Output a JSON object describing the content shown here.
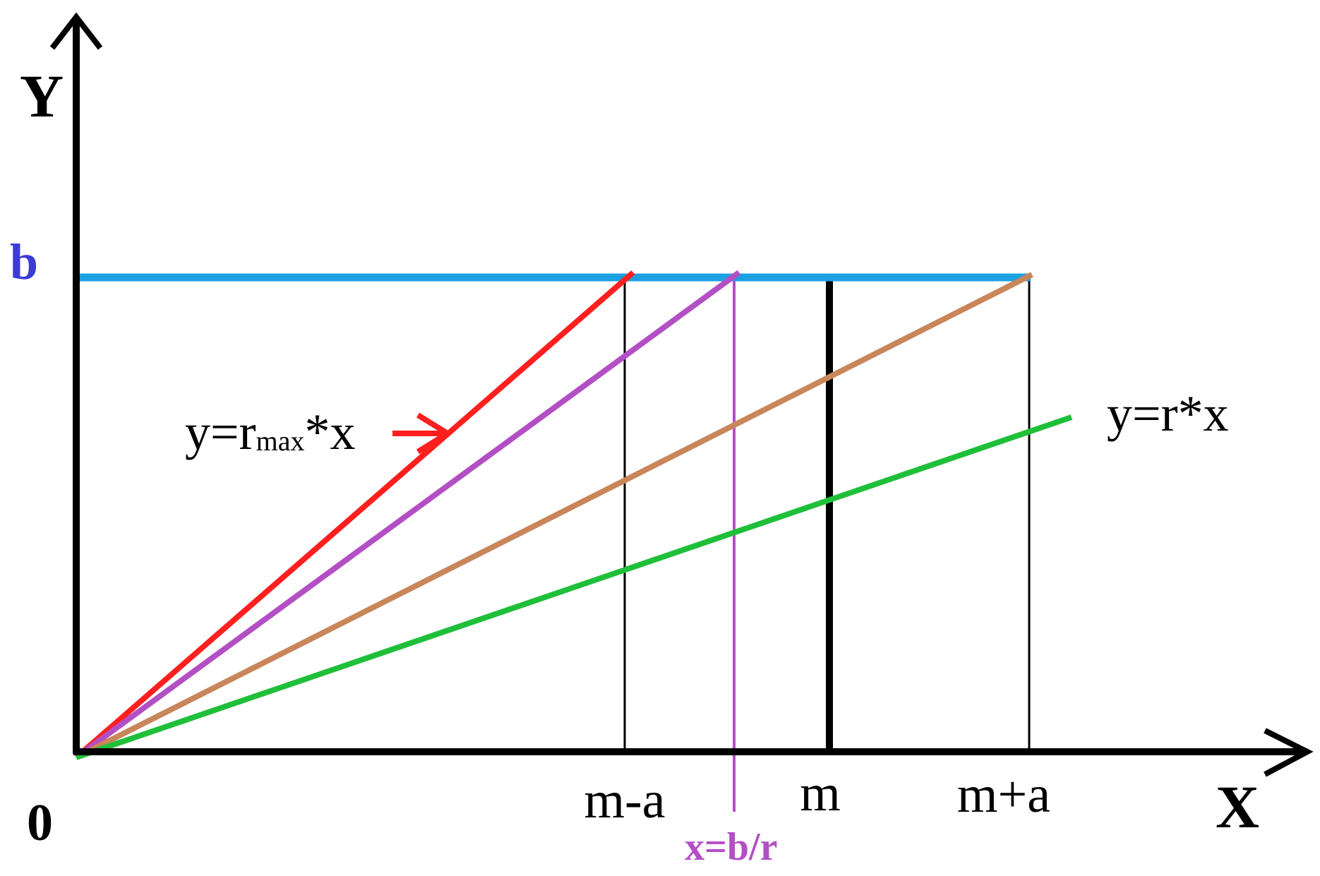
{
  "labels": {
    "y_axis": "Y",
    "x_axis": "X",
    "origin": "0",
    "b": "b",
    "m_minus_a": "m-a",
    "m": "m",
    "m_plus_a": "m+a",
    "x_equals_b_over_r": "x=b/r",
    "rmax_eq_prefix": "y=r",
    "rmax_eq_sub": "max",
    "rmax_eq_suffix": "*x",
    "r_eq": "y=r*x"
  },
  "colors": {
    "axes": "#000000",
    "b_line": "#1ba1e2",
    "b_label": "#3b3bd6",
    "line_rmax": "#ff1f1f",
    "line_r_purple": "#b34fc4",
    "line_r_brown": "#c8865a",
    "line_r_green": "#1fbf3a",
    "x_br_line": "#b34fc4",
    "x_br_label": "#b34fc4",
    "arrow": "#ff1f1f"
  }
}
